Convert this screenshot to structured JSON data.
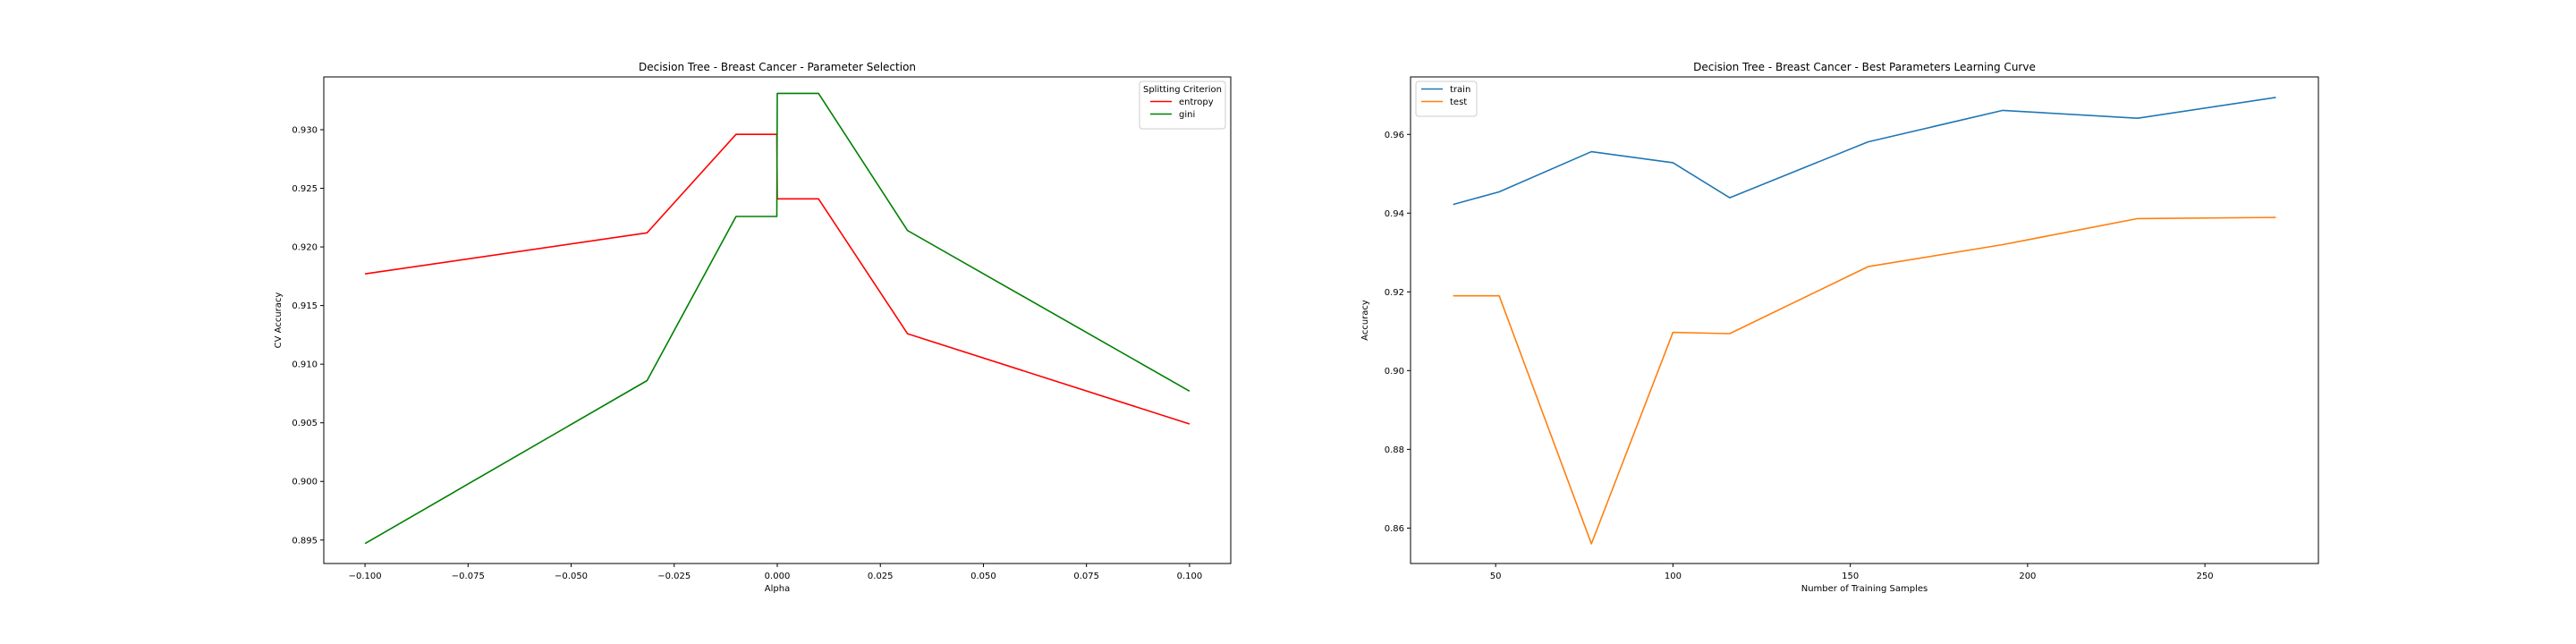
{
  "chart_data": [
    {
      "type": "line",
      "title": "Decision Tree - Breast Cancer - Parameter Selection",
      "xlabel": "Alpha",
      "ylabel": "CV Accuracy",
      "xlim": [
        -0.11,
        0.11
      ],
      "ylim": [
        0.893,
        0.9345
      ],
      "xticks": [
        -0.1,
        -0.075,
        -0.05,
        -0.025,
        0.0,
        0.025,
        0.05,
        0.075,
        0.1
      ],
      "xtick_labels": [
        "−0.100",
        "−0.075",
        "−0.050",
        "−0.025",
        "0.000",
        "0.025",
        "0.050",
        "0.075",
        "0.100"
      ],
      "yticks": [
        0.895,
        0.9,
        0.905,
        0.91,
        0.915,
        0.92,
        0.925,
        0.93
      ],
      "ytick_labels": [
        "0.895",
        "0.900",
        "0.905",
        "0.910",
        "0.915",
        "0.920",
        "0.925",
        "0.930"
      ],
      "grid": false,
      "legend": {
        "title": "Splitting Criterion",
        "position": "top-right"
      },
      "series": [
        {
          "name": "entropy",
          "color": "#ff0000",
          "x": [
            -0.1,
            -0.0316,
            -0.01,
            -0.00316,
            -0.001,
            -0.000316,
            -0.0001,
            0.0,
            0.0001,
            0.000316,
            0.001,
            0.00316,
            0.01,
            0.0316,
            0.1
          ],
          "y": [
            0.9177,
            0.9212,
            0.9296,
            0.9296,
            0.9296,
            0.9296,
            0.9296,
            0.9241,
            0.9241,
            0.9241,
            0.9241,
            0.9241,
            0.9241,
            0.9126,
            0.9049
          ]
        },
        {
          "name": "gini",
          "color": "#008000",
          "x": [
            -0.1,
            -0.0316,
            -0.01,
            -0.00316,
            -0.001,
            -0.000316,
            -0.0001,
            0.0,
            0.0001,
            0.000316,
            0.001,
            0.00316,
            0.01,
            0.0316,
            0.1
          ],
          "y": [
            0.8947,
            0.9086,
            0.9226,
            0.9226,
            0.9226,
            0.9226,
            0.9226,
            0.9331,
            0.9331,
            0.9331,
            0.9331,
            0.9331,
            0.9331,
            0.9214,
            0.9077
          ]
        }
      ]
    },
    {
      "type": "line",
      "title": "Decision Tree - Breast Cancer -  Best Parameters Learning Curve",
      "xlabel": "Number of Training Samples",
      "ylabel": "Accuracy",
      "xlim": [
        26,
        282
      ],
      "ylim": [
        0.851,
        0.9746
      ],
      "xticks": [
        50,
        100,
        150,
        200,
        250
      ],
      "xtick_labels": [
        "50",
        "100",
        "150",
        "200",
        "250"
      ],
      "yticks": [
        0.86,
        0.88,
        0.9,
        0.92,
        0.94,
        0.96
      ],
      "ytick_labels": [
        "0.86",
        "0.88",
        "0.90",
        "0.92",
        "0.94",
        "0.96"
      ],
      "grid": false,
      "legend": {
        "title": "",
        "position": "top-left"
      },
      "series": [
        {
          "name": "train",
          "color": "#1f77b4",
          "x": [
            38,
            51,
            77,
            100,
            116,
            155,
            193,
            231,
            270
          ],
          "y": [
            0.9422,
            0.9454,
            0.9556,
            0.9528,
            0.9439,
            0.9581,
            0.9661,
            0.9641,
            0.9694
          ]
        },
        {
          "name": "test",
          "color": "#ff7f0e",
          "x": [
            38,
            51,
            77,
            100,
            116,
            155,
            193,
            231,
            270
          ],
          "y": [
            0.919,
            0.919,
            0.856,
            0.9097,
            0.9094,
            0.9264,
            0.932,
            0.9386,
            0.9389
          ]
        }
      ]
    }
  ]
}
